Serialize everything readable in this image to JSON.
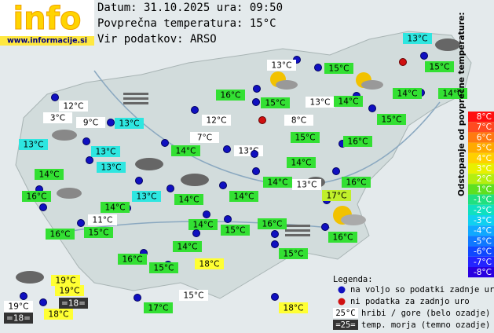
{
  "header": {
    "logo": "info",
    "site": "www.informacije.si",
    "date": "Datum: 31.10.2025 ura: 09:50",
    "average": "Povprečna temperatura: 15°C",
    "source": "Vir podatkov: ARSO"
  },
  "stations": [
    {
      "label": "13°C",
      "color": "#2ee6e0"
    },
    {
      "label": "13°C",
      "color": "#ffffff"
    },
    {
      "label": "15°C",
      "color": "#33e033"
    },
    {
      "label": "15°C",
      "color": "#33e033"
    },
    {
      "label": "16°C",
      "color": "#33e033"
    },
    {
      "label": "15°C",
      "color": "#33e033"
    },
    {
      "label": "13°C",
      "color": "#ffffff"
    },
    {
      "label": "14°C",
      "color": "#33e033"
    },
    {
      "label": "14°C",
      "color": "#33e033"
    },
    {
      "label": "14°C",
      "color": "#33e033"
    },
    {
      "label": "12°C",
      "color": "#ffffff"
    },
    {
      "label": "3°C",
      "color": "#ffffff"
    },
    {
      "label": "9°C",
      "color": "#ffffff"
    },
    {
      "label": "13°C",
      "color": "#2ee6e0"
    },
    {
      "label": "12°C",
      "color": "#ffffff"
    },
    {
      "label": "8°C",
      "color": "#ffffff"
    },
    {
      "label": "15°C",
      "color": "#33e033"
    },
    {
      "label": "7°C",
      "color": "#ffffff"
    },
    {
      "label": "15°C",
      "color": "#33e033"
    },
    {
      "label": "16°C",
      "color": "#33e033"
    },
    {
      "label": "13°C",
      "color": "#2ee6e0"
    },
    {
      "label": "13°C",
      "color": "#2ee6e0"
    },
    {
      "label": "14°C",
      "color": "#33e033"
    },
    {
      "label": "13°C",
      "color": "#ffffff"
    },
    {
      "label": "14°C",
      "color": "#33e033"
    },
    {
      "label": "13°C",
      "color": "#2ee6e0"
    },
    {
      "label": "14°C",
      "color": "#33e033"
    },
    {
      "label": "13°C",
      "color": "#2ee6e0"
    },
    {
      "label": "14°C",
      "color": "#33e033"
    },
    {
      "label": "13°C",
      "color": "#ffffff"
    },
    {
      "label": "17°C",
      "color": "#c0ef2a"
    },
    {
      "label": "16°C",
      "color": "#33e033"
    },
    {
      "label": "16°C",
      "color": "#33e033"
    },
    {
      "label": "14°C",
      "color": "#33e033"
    },
    {
      "label": "14°C",
      "color": "#33e033"
    },
    {
      "label": "14°C",
      "color": "#33e033"
    },
    {
      "label": "11°C",
      "color": "#ffffff"
    },
    {
      "label": "16°C",
      "color": "#33e033"
    },
    {
      "label": "15°C",
      "color": "#33e033"
    },
    {
      "label": "14°C",
      "color": "#33e033"
    },
    {
      "label": "15°C",
      "color": "#33e033"
    },
    {
      "label": "16°C",
      "color": "#33e033"
    },
    {
      "label": "16°C",
      "color": "#33e033"
    },
    {
      "label": "14°C",
      "color": "#33e033"
    },
    {
      "label": "15°C",
      "color": "#33e033"
    },
    {
      "label": "16°C",
      "color": "#33e033"
    },
    {
      "label": "15°C",
      "color": "#33e033"
    },
    {
      "label": "18°C",
      "color": "#ffff33"
    },
    {
      "label": "19°C",
      "color": "#ffff33"
    },
    {
      "label": "19°C",
      "color": "#ffff33"
    },
    {
      "label": "15°C",
      "color": "#ffffff"
    },
    {
      "label": "19°C",
      "color": "#ffffff"
    },
    {
      "label": "=18=",
      "color": "#333333"
    },
    {
      "label": "18°C",
      "color": "#ffff33"
    },
    {
      "label": "=18=",
      "color": "#333333"
    },
    {
      "label": "17°C",
      "color": "#33e033"
    },
    {
      "label": "18°C",
      "color": "#ffff33"
    }
  ],
  "scale": {
    "title": "Odstopanje od povprečne temperature:",
    "steps": [
      {
        "label": "8°C",
        "color": "#ff1010"
      },
      {
        "label": "7°C",
        "color": "#ff4a20"
      },
      {
        "label": "6°C",
        "color": "#ff7a10"
      },
      {
        "label": "5°C",
        "color": "#ffaa00"
      },
      {
        "label": "4°C",
        "color": "#ffd000"
      },
      {
        "label": "3°C",
        "color": "#e8f000"
      },
      {
        "label": "2°C",
        "color": "#b4ee10"
      },
      {
        "label": "1°C",
        "color": "#5ee020"
      },
      {
        "label": "-1°C",
        "color": "#20e080"
      },
      {
        "label": "-2°C",
        "color": "#10e0c0"
      },
      {
        "label": "-3°C",
        "color": "#10d0f0"
      },
      {
        "label": "-4°C",
        "color": "#10a8ff"
      },
      {
        "label": "-5°C",
        "color": "#1078ff"
      },
      {
        "label": "-6°C",
        "color": "#1048ff"
      },
      {
        "label": "-7°C",
        "color": "#2424ff"
      },
      {
        "label": "-8°C",
        "color": "#2a00e0"
      }
    ]
  },
  "legend": {
    "title": "Legenda:",
    "available": "na voljo so podatki zadnje ure",
    "missing": "ni podatka za zadnjo uro",
    "mountain_sample": "25°C",
    "mountain": "hribi / gore (belo ozadje)",
    "sea_sample": "=25=",
    "sea": "temp. morja (temno ozadje)"
  }
}
